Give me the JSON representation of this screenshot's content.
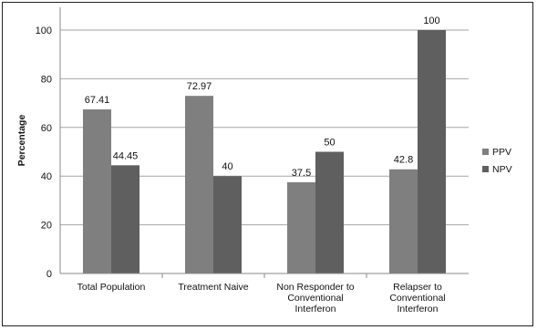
{
  "chart_data": {
    "type": "bar",
    "ylabel": "Percentage",
    "xlabel": "",
    "ylim": [
      0,
      100
    ],
    "yticks": [
      0,
      20,
      40,
      60,
      80,
      100
    ],
    "grid": true,
    "legend_position": "right",
    "categories": [
      [
        "Total Population"
      ],
      [
        "Treatment Naive"
      ],
      [
        "Non Responder to",
        "Conventional",
        "Interferon"
      ],
      [
        "Relapser to",
        "Conventional",
        "Interferon"
      ]
    ],
    "series": [
      {
        "name": "PPV",
        "values": [
          67.41,
          72.97,
          37.5,
          42.8
        ],
        "labels": [
          "67.41",
          "72.97",
          "37.5",
          "42.8"
        ],
        "color": "#7f7f7f"
      },
      {
        "name": "NPV",
        "values": [
          44.45,
          40,
          50,
          100
        ],
        "labels": [
          "44.45",
          "40",
          "50",
          "100"
        ],
        "color": "#5f5f5f"
      }
    ]
  }
}
